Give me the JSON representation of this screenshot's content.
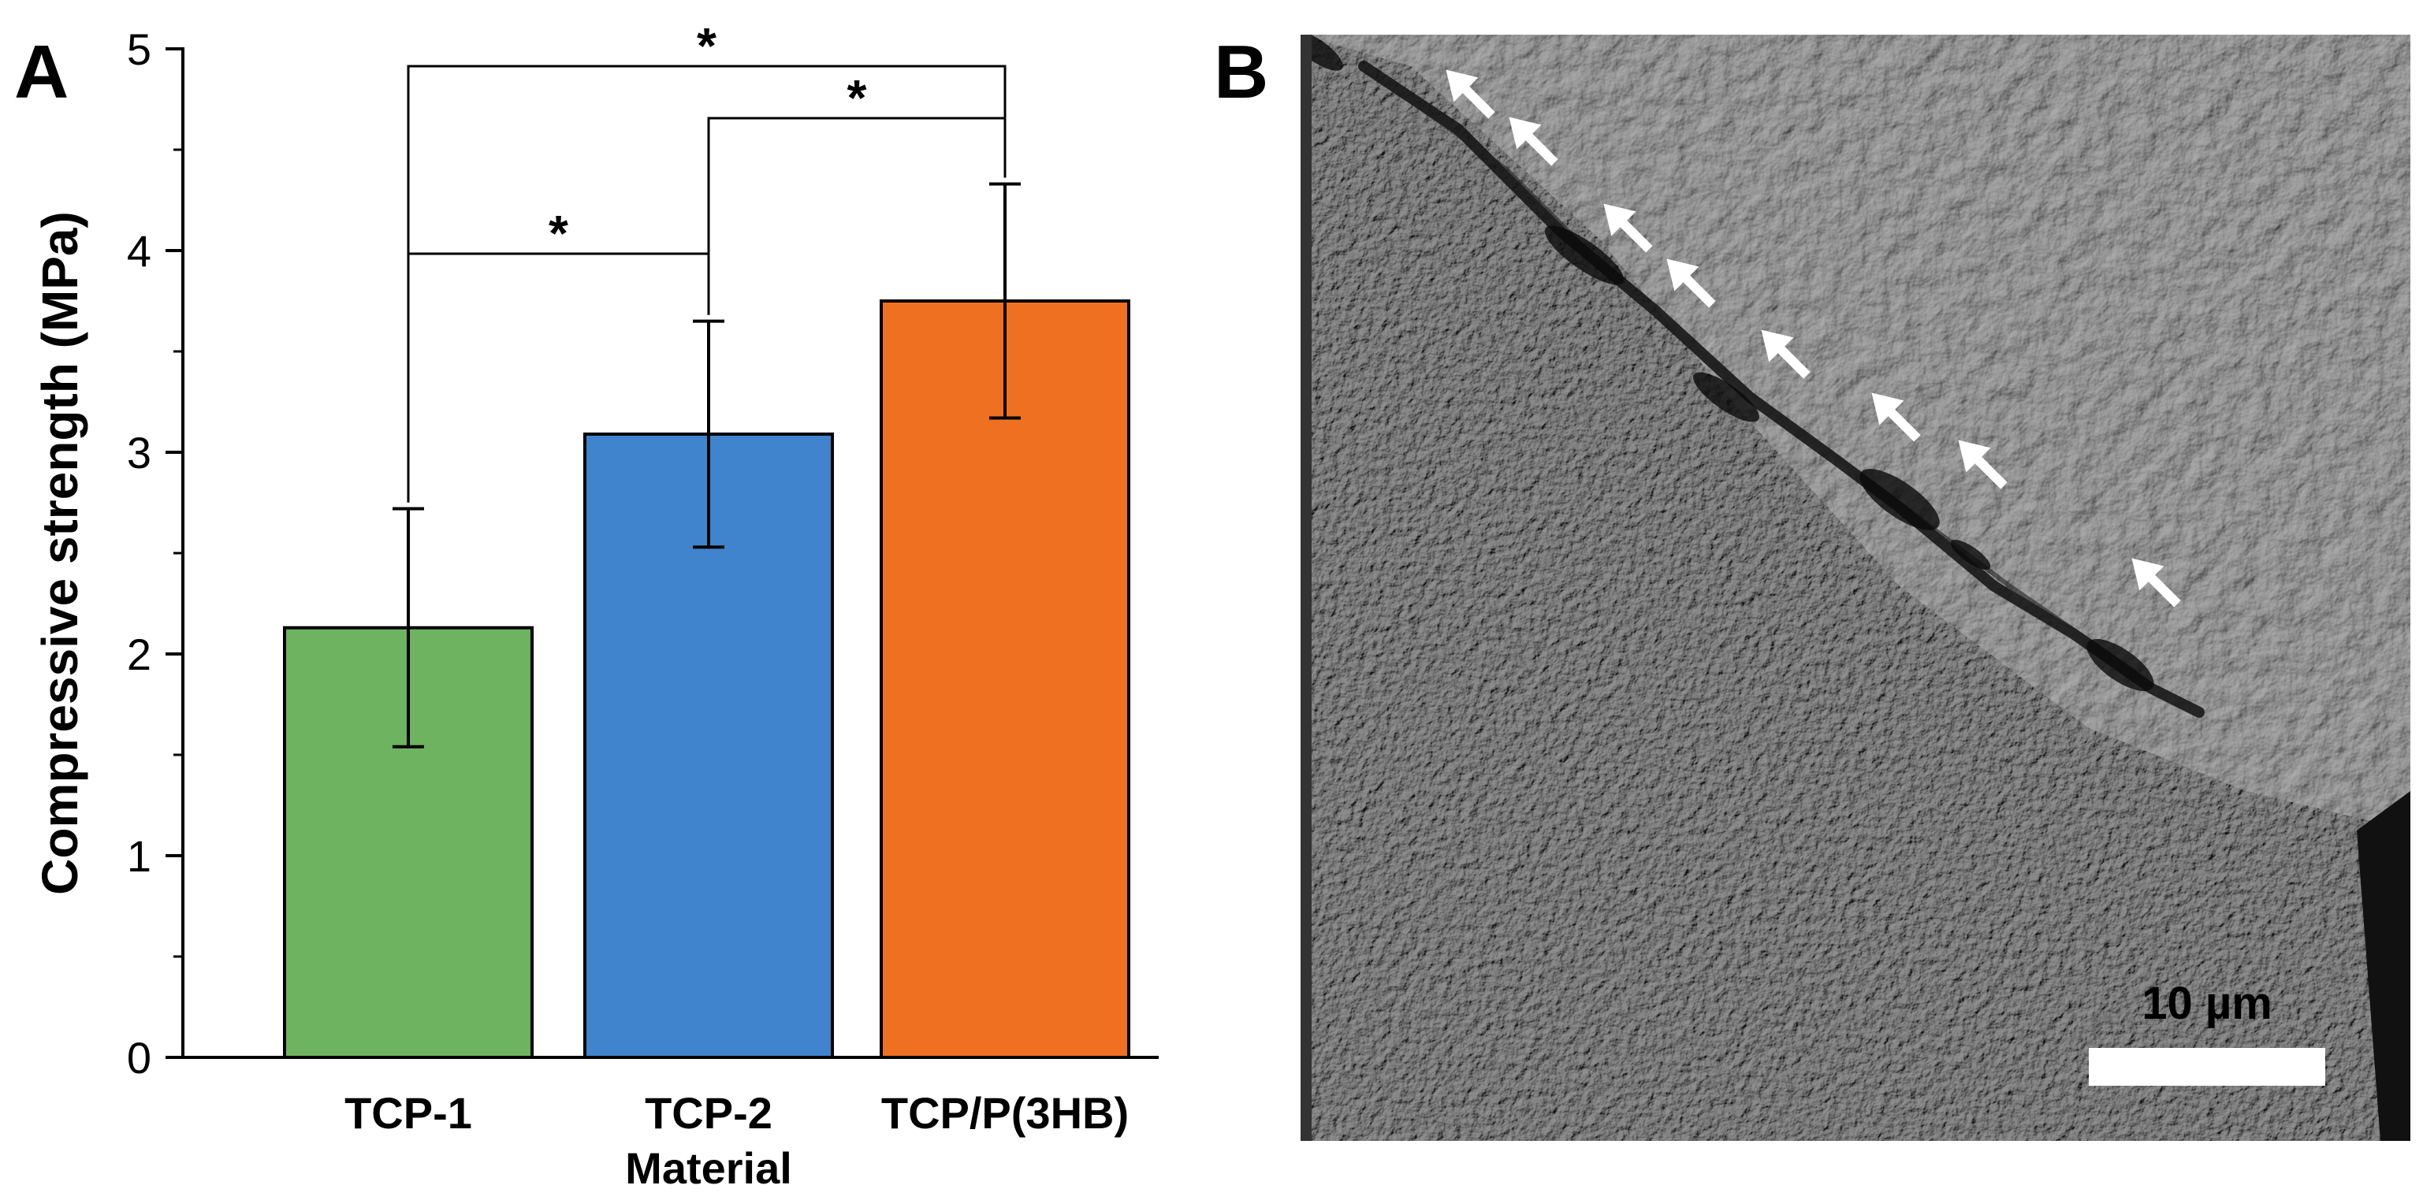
{
  "panels": {
    "a_label": "A",
    "b_label": "B"
  },
  "chart_data": {
    "type": "bar",
    "categories": [
      "TCP-1",
      "TCP-2",
      "TCP/P(3HB)"
    ],
    "values": [
      2.13,
      3.09,
      3.75
    ],
    "errors": [
      0.59,
      0.56,
      0.58
    ],
    "colors": [
      "#6db360",
      "#3f84cc",
      "#f07022"
    ],
    "xlabel": "Material",
    "ylabel": "Compressive strength (MPa)",
    "ylim": [
      0,
      5
    ],
    "yticks": [
      0,
      1,
      2,
      3,
      4,
      5
    ],
    "grid": false,
    "significance": [
      {
        "from": "TCP-1",
        "to": "TCP-2",
        "label": "*"
      },
      {
        "from": "TCP-2",
        "to": "TCP/P(3HB)",
        "label": "*"
      },
      {
        "from": "TCP-1",
        "to": "TCP/P(3HB)",
        "label": "*"
      }
    ]
  },
  "micrograph": {
    "scalebar_label": "10 µm",
    "arrow_icon": "white-arrow-icon",
    "arrow_count": 8
  }
}
